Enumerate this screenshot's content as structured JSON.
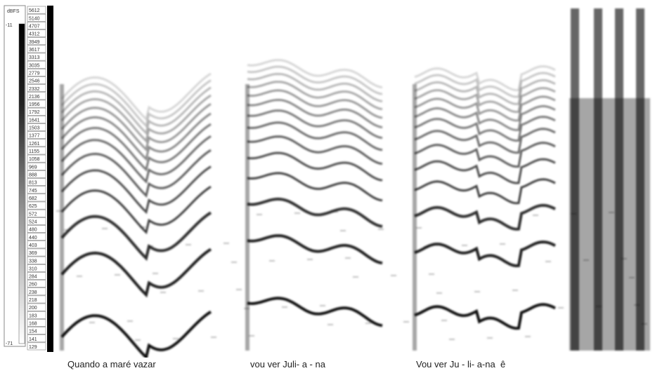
{
  "colorbar": {
    "unit": "dBFS",
    "max": "-11",
    "min": "-71"
  },
  "frequency_labels": [
    "5612",
    "5140",
    "4707",
    "4312",
    "3949",
    "3617",
    "3313",
    "3035",
    "2779",
    "2546",
    "2332",
    "2136",
    "1956",
    "1792",
    "1641",
    "1503",
    "1377",
    "1261",
    "1155",
    "1058",
    "969",
    "888",
    "813",
    "745",
    "682",
    "625",
    "572",
    "524",
    "480",
    "440",
    "403",
    "369",
    "338",
    "310",
    "284",
    "260",
    "238",
    "218",
    "200",
    "183",
    "168",
    "154",
    "141",
    "129"
  ],
  "lyrics": [
    "Quando a maré vazar",
    "vou ver Juli- a - na",
    "Vou ver Ju - li- a-na  ê"
  ]
}
